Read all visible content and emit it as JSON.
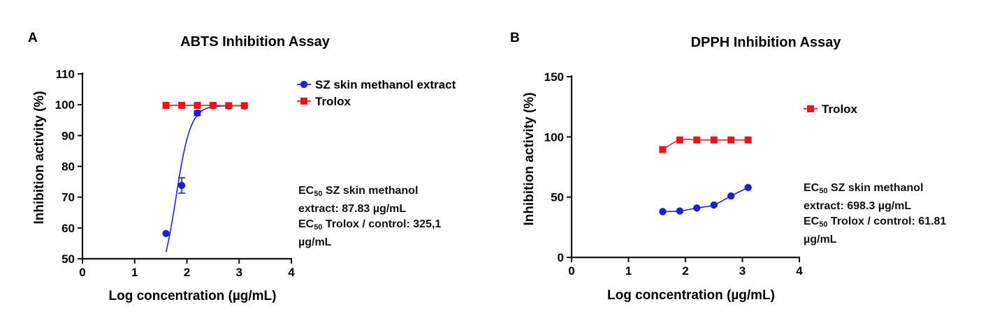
{
  "chart_data": [
    {
      "type": "line",
      "panel": "A",
      "title": "ABTS Inhibition Assay",
      "xlabel": "Log concentration (µg/mL)",
      "ylabel": "Inhibition activity (%)",
      "xlim": [
        0,
        4
      ],
      "ylim": [
        50,
        110
      ],
      "xticks": [
        "0",
        "1",
        "2",
        "3",
        "4"
      ],
      "yticks": [
        "50",
        "60",
        "70",
        "80",
        "90",
        "100",
        "110"
      ],
      "legend_position": "right",
      "grid": false,
      "series": [
        {
          "name": "SZ skin methanol extract",
          "color": "#1f1fd6",
          "marker": "circle",
          "x": [
            1.6,
            1.9,
            2.2,
            2.5,
            2.8,
            3.1
          ],
          "y": [
            58.2,
            73.8,
            97.3,
            99.7,
            99.6,
            99.6
          ],
          "error": [
            0,
            2.5,
            0.8,
            0,
            0,
            0
          ],
          "fit": "sigmoid"
        },
        {
          "name": "Trolox",
          "color": "#e8141a",
          "marker": "square",
          "x": [
            1.6,
            1.9,
            2.2,
            2.5,
            2.8,
            3.1
          ],
          "y": [
            99.8,
            99.8,
            99.8,
            99.8,
            99.7,
            99.7
          ],
          "fit": "line"
        }
      ],
      "annotation": {
        "line1_a": "EC",
        "line1_sub": "50",
        "line1_b": " SZ skin methanol",
        "line2": "extract: 87.83 µg/mL",
        "line3_a": "EC",
        "line3_sub": "50",
        "line3_b": " Trolox / control: 325,1",
        "line4": "µg/mL"
      }
    },
    {
      "type": "line",
      "panel": "B",
      "title": "DPPH Inhibition Assay",
      "xlabel": "Log concentration (µg/mL)",
      "ylabel": "Inhibition activity (%)",
      "xlim": [
        0,
        4
      ],
      "ylim": [
        0,
        150
      ],
      "xticks": [
        "0",
        "1",
        "2",
        "3",
        "4"
      ],
      "yticks": [
        "0",
        "50",
        "100",
        "150"
      ],
      "legend_position": "right",
      "grid": false,
      "series": [
        {
          "name": "",
          "color": "#1f1fd6",
          "marker": "circle",
          "x": [
            1.6,
            1.9,
            2.2,
            2.5,
            2.8,
            3.1
          ],
          "y": [
            38,
            38.5,
            41,
            43.5,
            51,
            58
          ],
          "fit": "curve"
        },
        {
          "name": "Trolox",
          "color": "#e8141a",
          "marker": "square",
          "x": [
            1.6,
            1.9,
            2.2,
            2.5,
            2.8,
            3.1
          ],
          "y": [
            89.5,
            97.5,
            97.5,
            97.5,
            97.5,
            97.5
          ],
          "fit": "curve"
        }
      ],
      "annotation": {
        "line1_a": "EC",
        "line1_sub": "50",
        "line1_b": " SZ skin methanol",
        "line2": "extract: 698.3 µg/mL",
        "line3_a": "EC",
        "line3_sub": "50",
        "line3_b": " Trolox / control: 61.81",
        "line4": "µg/mL"
      }
    }
  ]
}
